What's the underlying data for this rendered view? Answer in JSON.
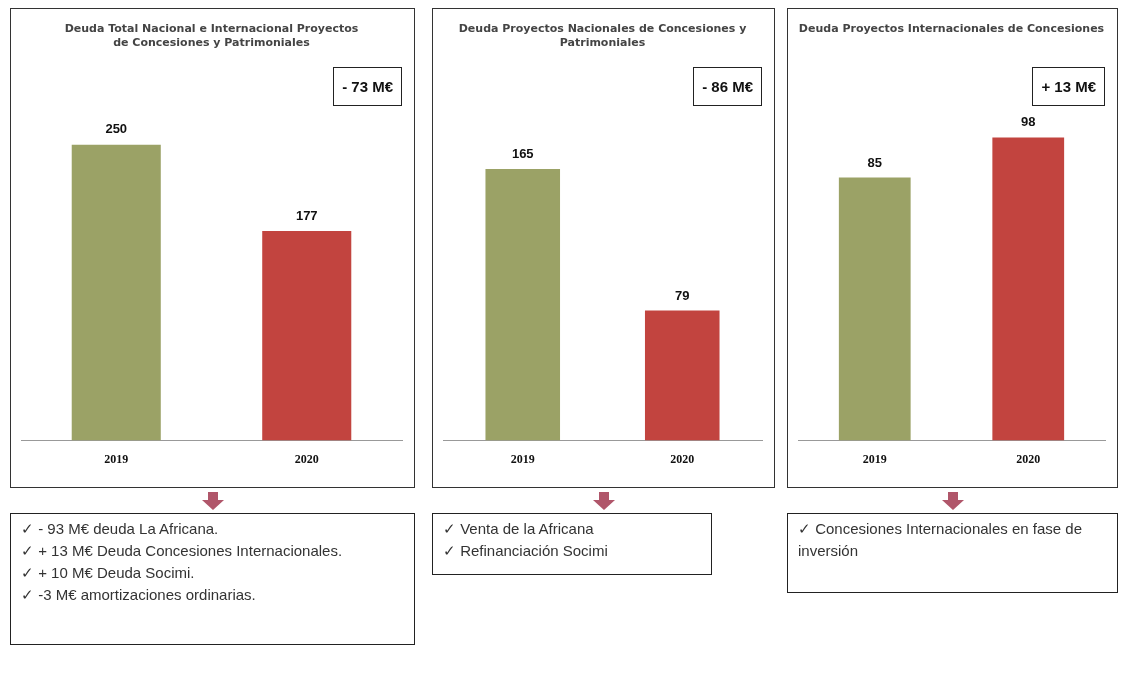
{
  "chart_data": [
    {
      "type": "bar",
      "title": "Deuda Total Nacional e Internacional Proyectos de Concesiones y Patrimoniales",
      "categories": [
        "2019",
        "2020"
      ],
      "values": [
        250,
        177
      ],
      "colors": [
        "#9ba266",
        "#c2443f"
      ],
      "data_labels": true,
      "grid": false,
      "legend": false,
      "tick_labels": "x",
      "annotations": [
        "- 73 M€",
        "✓ - 93 M€ deuda La Africana.",
        "✓ + 13 M€ Deuda Concesiones Internacionales.",
        "✓ + 10 M€ Deuda Socimi.",
        "✓ -3 M€ amortizaciones ordinarias."
      ]
    },
    {
      "type": "bar",
      "title": "Deuda Proyectos Nacionales de Concesiones y Patrimoniales",
      "categories": [
        "2019",
        "2020"
      ],
      "values": [
        165,
        79
      ],
      "colors": [
        "#9ba266",
        "#c2443f"
      ],
      "data_labels": true,
      "grid": false,
      "legend": false,
      "tick_labels": "x",
      "annotations": [
        "- 86 M€",
        "✓ Venta de la Africana",
        "✓ Refinanciación Socimi"
      ]
    },
    {
      "type": "bar",
      "title": "Deuda Proyectos Internacionales de Concesiones",
      "categories": [
        "2019",
        "2020"
      ],
      "values": [
        85,
        98
      ],
      "colors": [
        "#9ba266",
        "#c2443f"
      ],
      "data_labels": true,
      "grid": false,
      "legend": false,
      "tick_labels": "x",
      "annotations": [
        "+ 13 M€",
        "✓ Concesiones Internacionales en fase de inversión"
      ]
    }
  ]
}
